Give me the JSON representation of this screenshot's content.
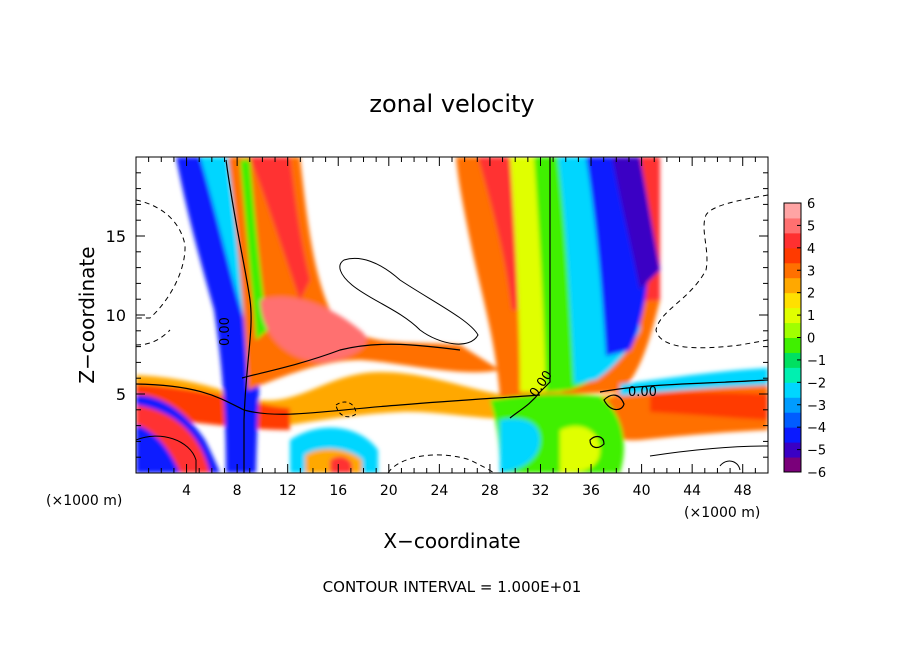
{
  "chart_data": {
    "type": "heatmap",
    "title": "zonal velocity",
    "xlabel": "X−coordinate",
    "ylabel": "Z−coordinate",
    "x_unit_left": "(×1000 m)",
    "x_unit_right": "(×1000 m)",
    "footer": "CONTOUR INTERVAL = 1.000E+01",
    "xlim": [
      0,
      50
    ],
    "ylim": [
      0,
      20
    ],
    "x_ticks": [
      "4",
      "8",
      "12",
      "16",
      "20",
      "24",
      "28",
      "32",
      "36",
      "40",
      "44",
      "48"
    ],
    "y_ticks": [
      "5",
      "10",
      "15"
    ],
    "contour_labels": [
      "0.00",
      "0.00",
      "0.00"
    ],
    "colorbar": {
      "ticks": [
        "6",
        "5",
        "4",
        "3",
        "2",
        "1",
        "0",
        "−1",
        "−2",
        "−3",
        "−4",
        "−5",
        "−6"
      ],
      "min": -6,
      "max": 6,
      "colors": [
        "#7a007a",
        "#3a00c4",
        "#0a1aff",
        "#005cff",
        "#009cff",
        "#00d6ff",
        "#00f0b0",
        "#00e060",
        "#40f000",
        "#a0ff00",
        "#e0ff00",
        "#ffe000",
        "#ffa800",
        "#ff7000",
        "#ff3a00",
        "#ff3030",
        "#ff7070",
        "#ffa4a4"
      ]
    }
  }
}
